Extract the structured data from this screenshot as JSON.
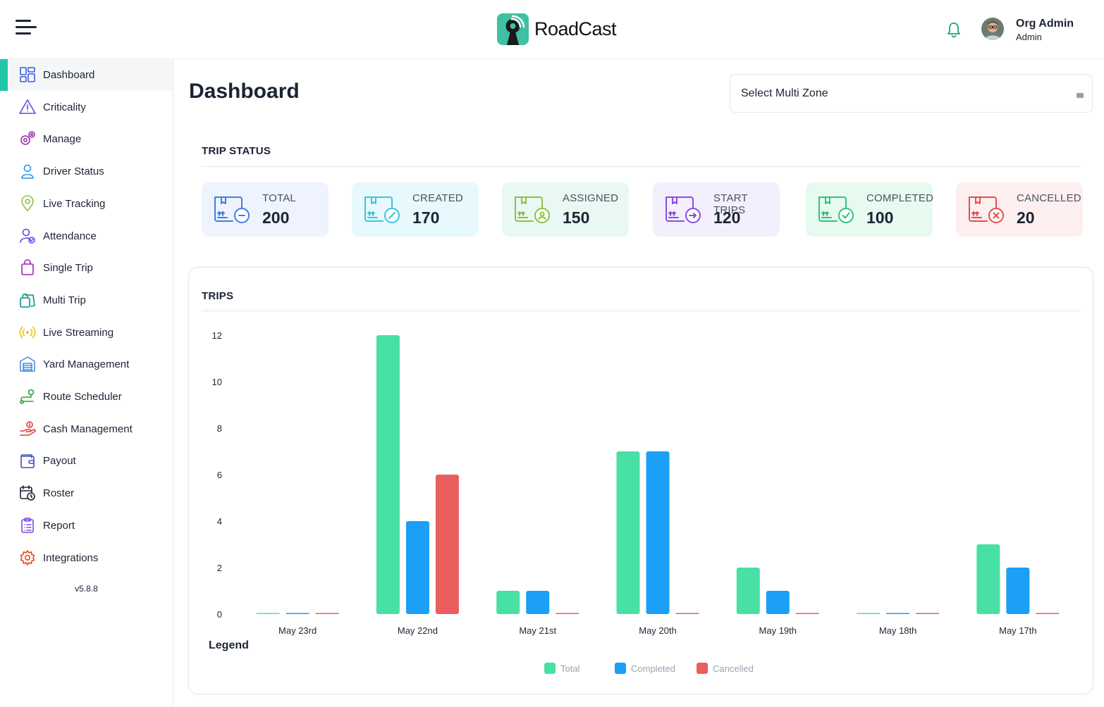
{
  "app": {
    "brand": "RoadCast",
    "user": {
      "name": "Org Admin",
      "role": "Admin"
    }
  },
  "sidebar": {
    "items": [
      {
        "label": "Dashboard",
        "icon": "dashboard-icon",
        "color": "#3b5bdb"
      },
      {
        "label": "Criticality",
        "icon": "warning-icon",
        "color": "#5b4de0"
      },
      {
        "label": "Manage",
        "icon": "gears-icon",
        "color": "#9c27b0"
      },
      {
        "label": "Driver Status",
        "icon": "user-icon",
        "color": "#2196f3"
      },
      {
        "label": "Live Tracking",
        "icon": "map-pin-icon",
        "color": "#8bc34a"
      },
      {
        "label": "Attendance",
        "icon": "user-check-icon",
        "color": "#5b4de0"
      },
      {
        "label": "Single Trip",
        "icon": "bag-icon",
        "color": "#9c27b0"
      },
      {
        "label": "Multi Trip",
        "icon": "bags-icon",
        "color": "#009688"
      },
      {
        "label": "Live Streaming",
        "icon": "broadcast-icon",
        "color": "#f4c20d"
      },
      {
        "label": "Yard Management",
        "icon": "warehouse-icon",
        "color": "#4a90e2"
      },
      {
        "label": "Route Scheduler",
        "icon": "route-icon",
        "color": "#2e9e2e"
      },
      {
        "label": "Cash Management",
        "icon": "cash-hand-icon",
        "color": "#e53935"
      },
      {
        "label": "Payout",
        "icon": "wallet-icon",
        "color": "#3f51b5"
      },
      {
        "label": "Roster",
        "icon": "calendar-clock-icon",
        "color": "#1c2434"
      },
      {
        "label": "Report",
        "icon": "clipboard-icon",
        "color": "#7b4de0"
      },
      {
        "label": "Integrations",
        "icon": "gear-icon",
        "color": "#e64a19"
      }
    ],
    "version": "v5.8.8"
  },
  "page": {
    "title": "Dashboard",
    "zone_select_placeholder": "Select Multi Zone"
  },
  "trip_status": {
    "title": "TRIP STATUS",
    "cards": [
      {
        "label": "TOTAL",
        "value": "200",
        "bg": "#eef3fd",
        "color": "#3f7fe0",
        "badge": "minus"
      },
      {
        "label": "CREATED",
        "value": "170",
        "bg": "#e7f9fc",
        "color": "#3cc4e0",
        "badge": "pencil"
      },
      {
        "label": "ASSIGNED",
        "value": "150",
        "bg": "#eaf8f3",
        "color": "#86c440",
        "badge": "user"
      },
      {
        "label": "START TRIPS",
        "value": "120",
        "bg": "#f3effd",
        "color": "#8a4de0",
        "badge": "arrow"
      },
      {
        "label": "COMPLETED",
        "value": "100",
        "bg": "#e6faef",
        "color": "#2ec47a",
        "badge": "check"
      },
      {
        "label": "CANCELLED",
        "value": "20",
        "bg": "#fdeff0",
        "color": "#e84c4c",
        "badge": "x"
      }
    ]
  },
  "trips_chart": {
    "title": "TRIPS",
    "legend_title": "Legend"
  },
  "chart_data": {
    "type": "bar",
    "categories": [
      "May 23rd",
      "May 22nd",
      "May 21st",
      "May 20th",
      "May 19th",
      "May 18th",
      "May 17th"
    ],
    "series": [
      {
        "name": "Total",
        "color": "#48e0a5",
        "values": [
          0,
          12,
          1,
          7,
          2,
          0,
          3
        ]
      },
      {
        "name": "Completed",
        "color": "#1b9ff7",
        "values": [
          0,
          4,
          1,
          7,
          1,
          0,
          2
        ]
      },
      {
        "name": "Cancelled",
        "color": "#eb5e5e",
        "values": [
          0,
          6,
          0,
          0,
          0,
          0,
          0
        ]
      }
    ],
    "ylim": [
      0,
      12
    ],
    "yticks": [
      0,
      2,
      4,
      6,
      8,
      10,
      12
    ],
    "grid": false,
    "legend": "bottom-center"
  }
}
